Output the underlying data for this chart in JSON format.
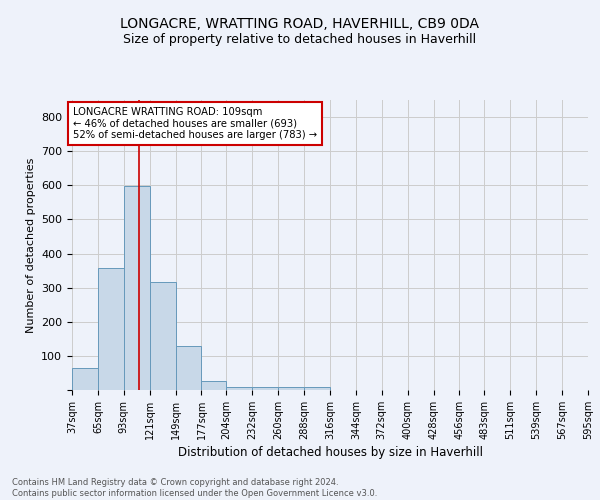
{
  "title": "LONGACRE, WRATTING ROAD, HAVERHILL, CB9 0DA",
  "subtitle": "Size of property relative to detached houses in Haverhill",
  "xlabel": "Distribution of detached houses by size in Haverhill",
  "ylabel": "Number of detached properties",
  "footer_line1": "Contains HM Land Registry data © Crown copyright and database right 2024.",
  "footer_line2": "Contains public sector information licensed under the Open Government Licence v3.0.",
  "bar_edges": [
    37,
    65,
    93,
    121,
    149,
    177,
    204,
    232,
    260,
    288,
    316,
    344,
    372,
    400,
    428,
    456,
    483,
    511,
    539,
    567,
    595
  ],
  "bar_heights": [
    65,
    358,
    598,
    317,
    128,
    27,
    9,
    9,
    9,
    9,
    0,
    0,
    0,
    0,
    0,
    0,
    0,
    0,
    0,
    0
  ],
  "bar_color": "#c8d8e8",
  "bar_edgecolor": "#6699bb",
  "grid_color": "#cccccc",
  "background_color": "#eef2fa",
  "property_size": 109,
  "property_line_color": "#cc0000",
  "annotation_line1": "LONGACRE WRATTING ROAD: 109sqm",
  "annotation_line2": "← 46% of detached houses are smaller (693)",
  "annotation_line3": "52% of semi-detached houses are larger (783) →",
  "annotation_box_color": "#ffffff",
  "annotation_border_color": "#cc0000",
  "ylim": [
    0,
    850
  ],
  "yticks": [
    0,
    100,
    200,
    300,
    400,
    500,
    600,
    700,
    800
  ],
  "tick_labels": [
    "37sqm",
    "65sqm",
    "93sqm",
    "121sqm",
    "149sqm",
    "177sqm",
    "204sqm",
    "232sqm",
    "260sqm",
    "288sqm",
    "316sqm",
    "344sqm",
    "372sqm",
    "400sqm",
    "428sqm",
    "456sqm",
    "483sqm",
    "511sqm",
    "539sqm",
    "567sqm",
    "595sqm"
  ]
}
